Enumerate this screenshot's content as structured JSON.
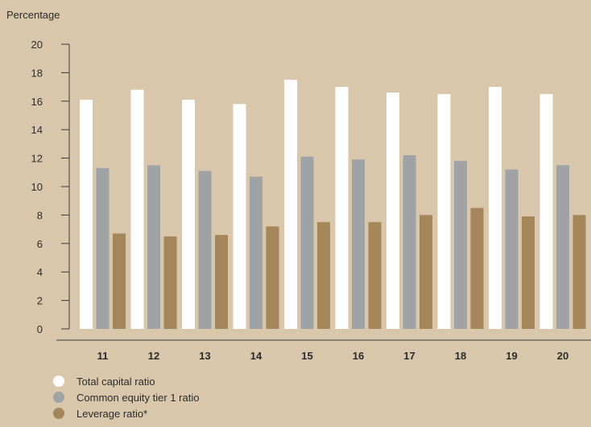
{
  "chart_data": {
    "type": "bar",
    "ylabel": "Percentage",
    "categories": [
      "11",
      "12",
      "13",
      "14",
      "15",
      "16",
      "17",
      "18",
      "19",
      "20"
    ],
    "ylim": [
      0,
      20
    ],
    "yticks": [
      0,
      2,
      4,
      6,
      8,
      10,
      12,
      14,
      16,
      18,
      20
    ],
    "grid": false,
    "legend_position": "bottom-left",
    "series": [
      {
        "name": "Total capital ratio",
        "color": "#ffffff",
        "values": [
          16.1,
          16.8,
          16.1,
          15.8,
          17.5,
          17.0,
          16.6,
          16.5,
          17.0,
          16.5
        ]
      },
      {
        "name": "Common equity tier 1 ratio",
        "color": "#a0a3a5",
        "values": [
          11.3,
          11.5,
          11.1,
          10.7,
          12.1,
          11.9,
          12.2,
          11.8,
          11.2,
          11.5
        ]
      },
      {
        "name": "Leverage ratio*",
        "color": "#a5865a",
        "values": [
          6.7,
          6.5,
          6.6,
          7.2,
          7.5,
          7.5,
          8.0,
          8.5,
          7.9,
          8.0
        ]
      }
    ]
  }
}
